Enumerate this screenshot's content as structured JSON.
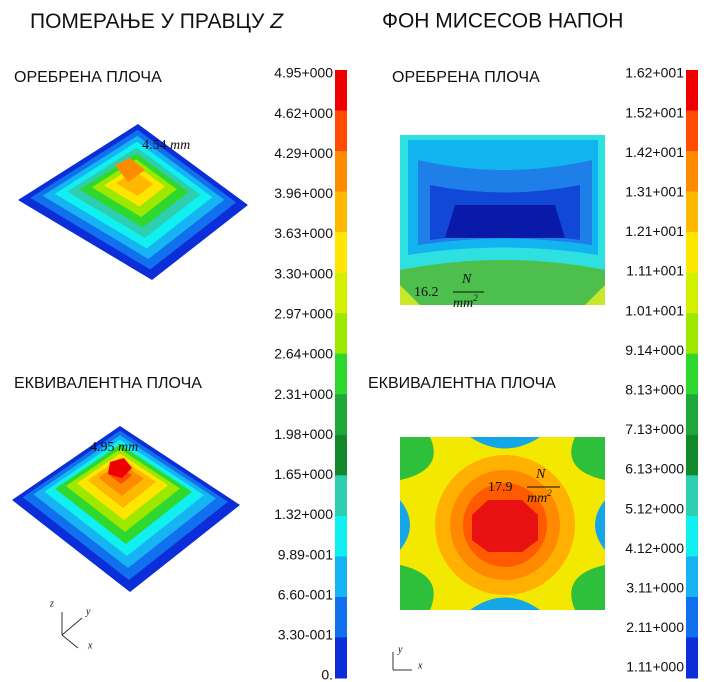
{
  "left": {
    "title": "ПОМЕРАЊЕ У ПРАВЦУ",
    "title_symbol": "Z",
    "panels": [
      {
        "label": "ОРЕБРЕНА ПЛОЧА",
        "annotation_value": "4.54",
        "annotation_unit": "mm"
      },
      {
        "label": "ЕКВИВАЛЕНТНА ПЛОЧА",
        "annotation_value": "4.95",
        "annotation_unit": "mm"
      }
    ],
    "colorbar": [
      "4.95+000",
      "4.62+000",
      "4.29+000",
      "3.96+000",
      "3.63+000",
      "3.30+000",
      "2.97+000",
      "2.64+000",
      "2.31+000",
      "1.98+000",
      "1.65+000",
      "1.32+000",
      "9.89-001",
      "6.60-001",
      "3.30-001",
      "0."
    ],
    "axes": [
      "z",
      "y",
      "x"
    ]
  },
  "right": {
    "title": "ФОН МИСЕСОВ НАПОН",
    "panels": [
      {
        "label": "ОРЕБРЕНА ПЛОЧА",
        "annotation_value": "16.2",
        "unit_num": "N",
        "unit_den": "mm",
        "unit_exp": "2"
      },
      {
        "label": "ЕКВИВАЛЕНТНА ПЛОЧА",
        "annotation_value": "17.9",
        "unit_num": "N",
        "unit_den": "mm",
        "unit_exp": "2"
      }
    ],
    "colorbar": [
      "1.62+001",
      "1.52+001",
      "1.42+001",
      "1.31+001",
      "1.21+001",
      "1.11+001",
      "1.01+001",
      "9.14+000",
      "8.13+000",
      "7.13+000",
      "6.13+000",
      "5.12+000",
      "4.12+000",
      "3.11+000",
      "2.11+000",
      "1.11+000"
    ],
    "axes": [
      "y",
      "x"
    ]
  }
}
